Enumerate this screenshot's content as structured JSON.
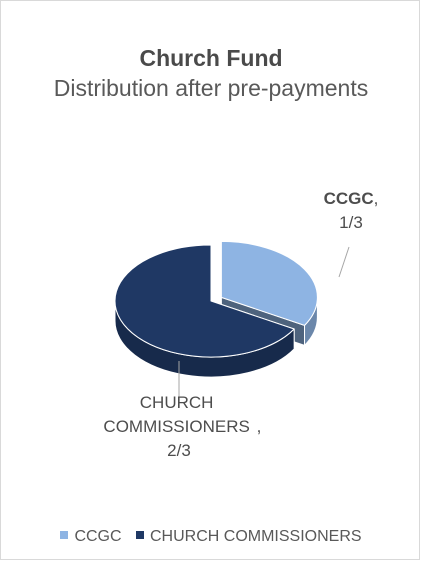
{
  "chart_data": {
    "type": "pie",
    "title": "Church Fund",
    "subtitle": "Distribution after pre-payments",
    "categories": [
      "CCGC",
      "CHURCH COMMISSIONERS"
    ],
    "values": [
      0.3333,
      0.6667
    ],
    "value_labels": [
      "1/3",
      "2/3"
    ],
    "exploded": [
      "CCGC"
    ],
    "style": "3d",
    "legend_position": "bottom",
    "colors": [
      "#8eb4e3",
      "#1f3864"
    ]
  },
  "labels": {
    "slice0": {
      "category": "CCGC",
      "separator": ",",
      "value": "1/3"
    },
    "slice1": {
      "category": "CHURCH COMMISSIONERS",
      "separator": ",",
      "value": "2/3"
    }
  },
  "legend": {
    "items": [
      {
        "label": "CCGC",
        "color": "#8eb4e3"
      },
      {
        "label": "CHURCH COMMISSIONERS",
        "color": "#1f3864"
      }
    ]
  }
}
